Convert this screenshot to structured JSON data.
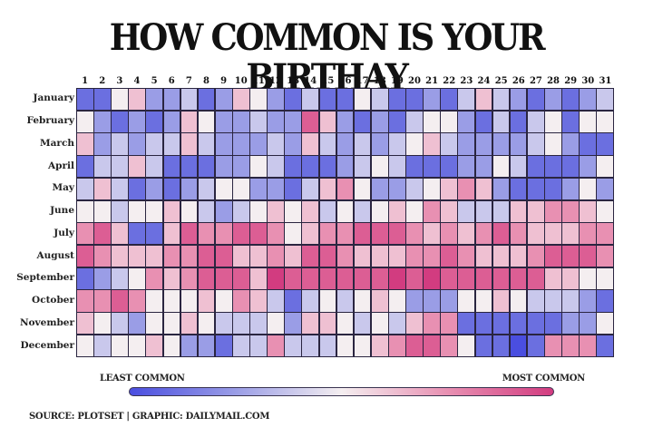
{
  "chart_data": {
    "type": "heatmap",
    "title": "HOW COMMON IS YOUR BIRTHAY",
    "xlabel": "",
    "ylabel": "",
    "x_categories": [
      "1",
      "2",
      "3",
      "4",
      "5",
      "6",
      "7",
      "8",
      "9",
      "10",
      "11",
      "12",
      "13",
      "14",
      "15",
      "16",
      "17",
      "18",
      "19",
      "20",
      "21",
      "22",
      "23",
      "24",
      "25",
      "26",
      "27",
      "28",
      "29",
      "30",
      "31"
    ],
    "y_categories": [
      "January",
      "February",
      "March",
      "April",
      "May",
      "June",
      "July",
      "August",
      "September",
      "October",
      "November",
      "December"
    ],
    "value_scale": "1 = least common (deep blue) ... 5 = neutral (white) ... 9 = most common (deep pink)",
    "values": [
      [
        2,
        2,
        5,
        6,
        3,
        3,
        4,
        2,
        3,
        6,
        5,
        3,
        2,
        4,
        2,
        2,
        5,
        4,
        2,
        2,
        3,
        2,
        4,
        6,
        4,
        3,
        2,
        3,
        2,
        3,
        4
      ],
      [
        5,
        3,
        2,
        3,
        2,
        3,
        6,
        5,
        3,
        3,
        4,
        3,
        3,
        8,
        6,
        3,
        2,
        3,
        2,
        4,
        5,
        5,
        3,
        2,
        4,
        2,
        4,
        5,
        2,
        5,
        5
      ],
      [
        6,
        3,
        4,
        3,
        4,
        4,
        6,
        4,
        3,
        3,
        3,
        4,
        3,
        6,
        4,
        3,
        4,
        3,
        4,
        5,
        6,
        4,
        3,
        3,
        3,
        3,
        4,
        5,
        3,
        2,
        2
      ],
      [
        2,
        4,
        4,
        6,
        4,
        2,
        2,
        2,
        3,
        3,
        5,
        4,
        2,
        2,
        2,
        3,
        4,
        5,
        4,
        2,
        2,
        2,
        3,
        3,
        5,
        4,
        2,
        2,
        2,
        3,
        5
      ],
      [
        4,
        6,
        4,
        2,
        3,
        2,
        3,
        4,
        5,
        5,
        3,
        3,
        2,
        4,
        6,
        7,
        5,
        3,
        3,
        4,
        5,
        6,
        7,
        6,
        3,
        2,
        2,
        2,
        3,
        5,
        3
      ],
      [
        5,
        5,
        4,
        5,
        5,
        6,
        5,
        4,
        3,
        4,
        5,
        6,
        5,
        6,
        4,
        5,
        4,
        5,
        6,
        5,
        7,
        6,
        4,
        4,
        4,
        6,
        6,
        7,
        7,
        6,
        5
      ],
      [
        7,
        8,
        6,
        2,
        2,
        6,
        8,
        7,
        7,
        8,
        8,
        7,
        5,
        6,
        7,
        7,
        8,
        8,
        8,
        7,
        6,
        7,
        6,
        7,
        8,
        7,
        6,
        6,
        6,
        7,
        7
      ],
      [
        8,
        7,
        6,
        6,
        6,
        7,
        7,
        8,
        8,
        6,
        6,
        7,
        6,
        8,
        8,
        7,
        6,
        6,
        6,
        7,
        7,
        8,
        7,
        6,
        6,
        6,
        7,
        8,
        8,
        8,
        7
      ],
      [
        2,
        3,
        4,
        5,
        7,
        6,
        7,
        8,
        8,
        8,
        6,
        9,
        8,
        8,
        8,
        8,
        8,
        8,
        9,
        8,
        9,
        8,
        8,
        8,
        8,
        8,
        8,
        6,
        6,
        5,
        5
      ],
      [
        7,
        7,
        8,
        7,
        5,
        5,
        5,
        6,
        5,
        7,
        6,
        4,
        2,
        4,
        5,
        4,
        5,
        6,
        5,
        3,
        3,
        3,
        5,
        5,
        6,
        5,
        4,
        4,
        4,
        3,
        2
      ],
      [
        6,
        5,
        4,
        3,
        5,
        5,
        6,
        5,
        4,
        4,
        4,
        5,
        3,
        6,
        6,
        5,
        4,
        5,
        4,
        6,
        7,
        7,
        2,
        2,
        2,
        2,
        2,
        2,
        3,
        3,
        5
      ],
      [
        5,
        4,
        5,
        5,
        6,
        5,
        3,
        3,
        2,
        4,
        4,
        7,
        4,
        4,
        4,
        5,
        5,
        6,
        7,
        8,
        8,
        7,
        5,
        2,
        2,
        1,
        2,
        7,
        7,
        7,
        2
      ]
    ],
    "colorscale": [
      "#4a4ee0",
      "#6b6fe0",
      "#9a9de6",
      "#c9c8ec",
      "#f4eef0",
      "#efc0d2",
      "#e890b2",
      "#dc5e94",
      "#d23c80"
    ],
    "legend": {
      "low_label": "LEAST COMMON",
      "high_label": "MOST COMMON",
      "position": "bottom"
    },
    "grid": true
  },
  "header": {
    "title": "HOW COMMON IS YOUR BIRTHAY"
  },
  "legend": {
    "low_label": "LEAST COMMON",
    "high_label": "MOST COMMON",
    "low_color": "#4a4ee0",
    "mid_color": "#f4eef0",
    "high_color": "#d23c80"
  },
  "footer": {
    "source": "SOURCE: PLOTSET | GRAPHIC: DAILYMAIL.COM"
  }
}
